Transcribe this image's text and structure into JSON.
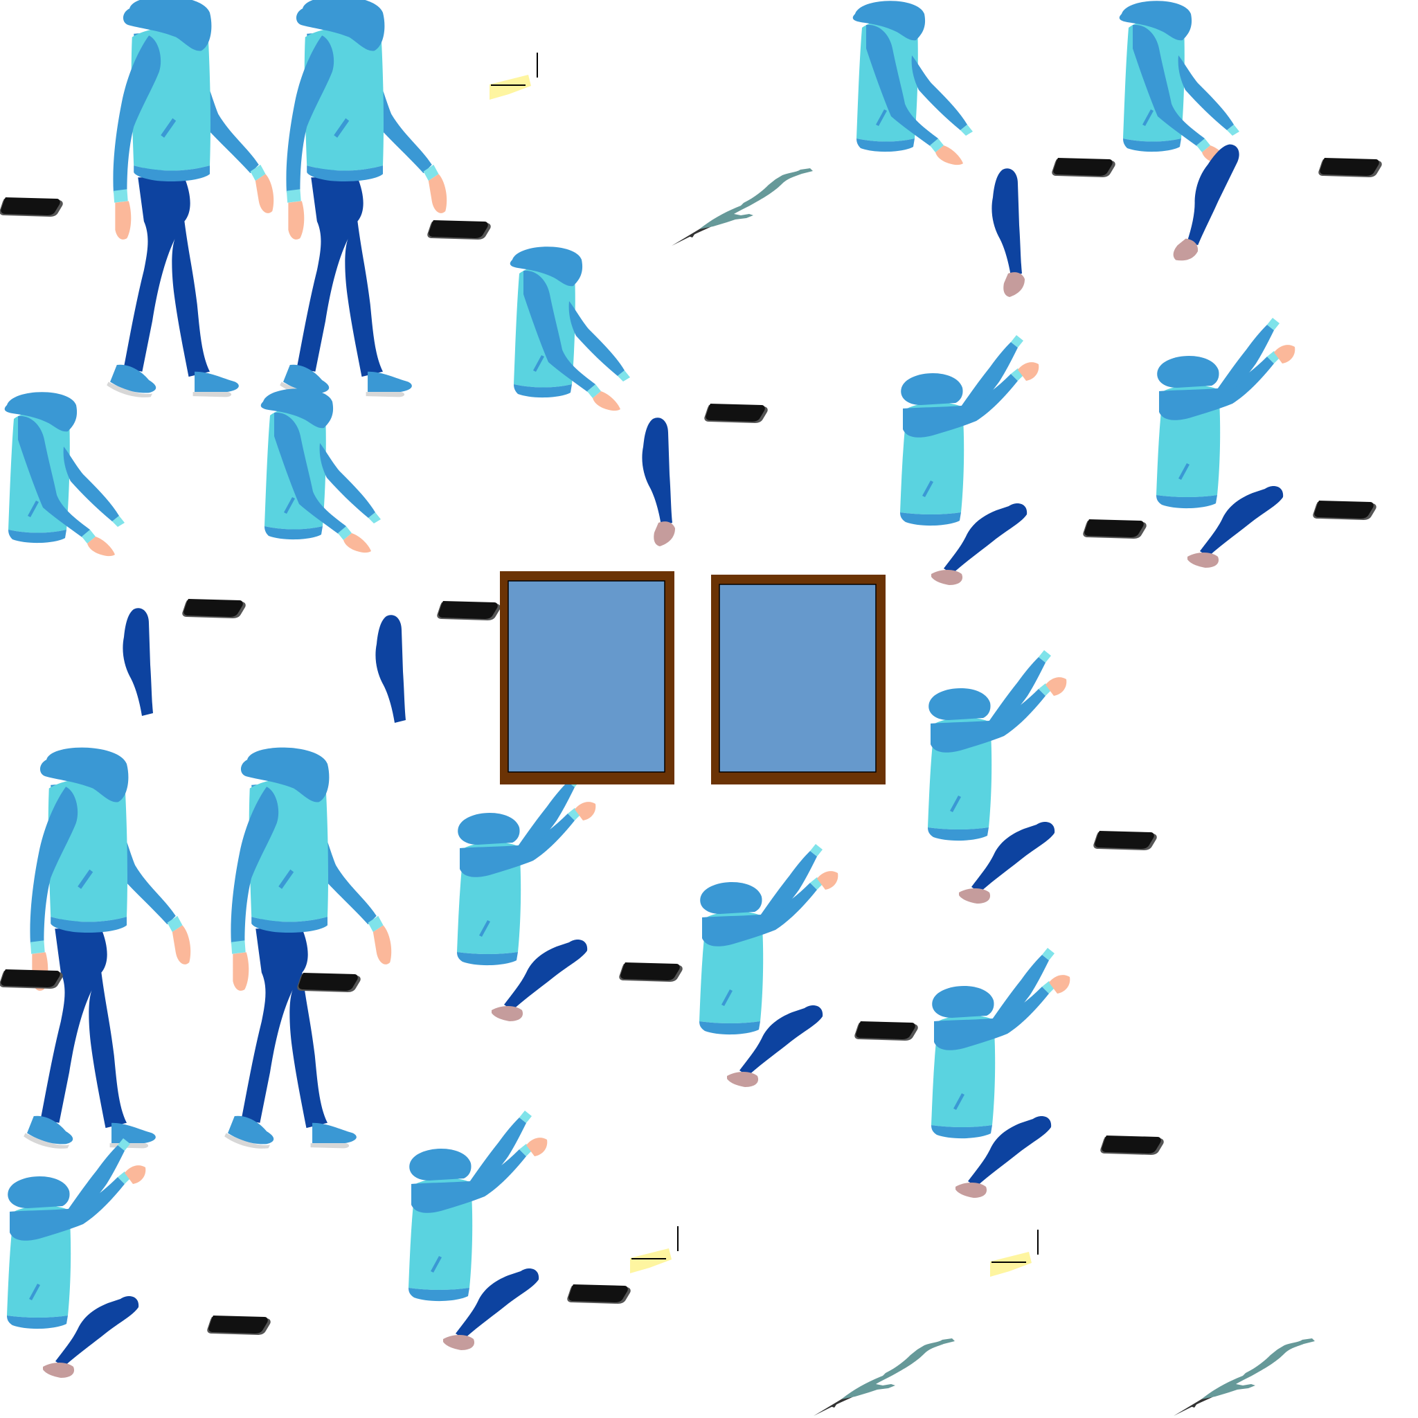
{
  "sheet": {
    "kind": "sprite-atlas",
    "background": "#ffffff"
  },
  "palette": {
    "hood": "#3a98d4",
    "vest": "#5ad3e0",
    "vest_hem": "#3a98d4",
    "pants": "#0d43a0",
    "skin": "#fbb89a",
    "cuff": "#7fe3ea",
    "shoe": "#3a98d4",
    "shoe_sole": "#d7d7d7",
    "sock_foot": "#c59c9c",
    "phone": "#111111",
    "phone_edge": "#555555",
    "window_frame": "#6b3305",
    "window_glass": "#6699cc",
    "branch": "#669999",
    "paper": "#fef5a0"
  },
  "sprites": [
    {
      "type": "walker-pose",
      "name": "walker-front-1"
    },
    {
      "type": "walker-pose",
      "name": "walker-front-2"
    },
    {
      "type": "walker-pose",
      "name": "walker-front-3"
    },
    {
      "type": "walker-pose",
      "name": "walker-front-4"
    },
    {
      "type": "torso-reach",
      "name": "torso-reach-down-1"
    },
    {
      "type": "torso-reach",
      "name": "torso-reach-down-2"
    },
    {
      "type": "torso-reach",
      "name": "torso-reach-down-3"
    },
    {
      "type": "torso-reach",
      "name": "torso-reach-down-4"
    },
    {
      "type": "torso-reach",
      "name": "torso-reach-down-5"
    },
    {
      "type": "torso-reach",
      "name": "torso-reach-up-1"
    },
    {
      "type": "torso-reach",
      "name": "torso-reach-up-2"
    },
    {
      "type": "torso-reach",
      "name": "torso-reach-up-3"
    },
    {
      "type": "torso-reach",
      "name": "torso-reach-up-4"
    },
    {
      "type": "torso-reach",
      "name": "torso-reach-up-5"
    },
    {
      "type": "torso-reach",
      "name": "torso-reach-up-6"
    },
    {
      "type": "torso-reach",
      "name": "torso-reach-up-7"
    },
    {
      "type": "torso-reach",
      "name": "torso-reach-up-8"
    },
    {
      "type": "leg-part",
      "name": "leg-vertical-parts"
    },
    {
      "type": "leg-part",
      "name": "leg-diagonal-parts"
    },
    {
      "type": "phone",
      "name": "phone-parts"
    },
    {
      "type": "window",
      "name": "window-left"
    },
    {
      "type": "window",
      "name": "window-right"
    },
    {
      "type": "branch",
      "name": "branch-parts"
    },
    {
      "type": "paper",
      "name": "paper-parts"
    }
  ]
}
